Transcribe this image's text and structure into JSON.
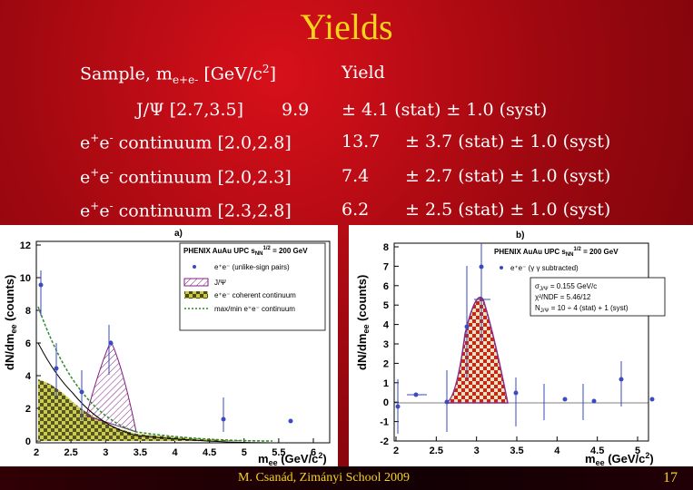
{
  "title": "Yields",
  "table": {
    "header_sample": "Sample, m",
    "header_sample_sub": "e+e-",
    "header_units": "[GeV/c",
    "header_units_sup": "2",
    "header_units_close": "]",
    "header_yield": "Yield",
    "rows": [
      {
        "label": "J/Ψ [2.7,3.5]",
        "value": "9.9",
        "uncert": "± 4.1 (stat) ± 1.0 (syst)"
      },
      {
        "pre": "e",
        "sup1": "+",
        "mid": "e",
        "sup2": "-",
        "label": " continuum [2.0,2.8]",
        "value": "13.7",
        "uncert": "± 3.7 (stat) ± 1.0 (syst)"
      },
      {
        "pre": "e",
        "sup1": "+",
        "mid": "e",
        "sup2": "-",
        "label": " continuum [2.0,2.3]",
        "value": "7.4",
        "uncert": "± 2.7 (stat) ± 1.0 (syst)"
      },
      {
        "pre": "e",
        "sup1": "+",
        "mid": "e",
        "sup2": "-",
        "label": " continuum [2.3,2.8]",
        "value": "6.2",
        "uncert": "± 2.5 (stat) ± 1.0 (syst)"
      }
    ]
  },
  "panel_a": {
    "tag": "a)",
    "ylabel": "dN/dm",
    "ylabel_sub": "ee",
    "ylabel_units": " (counts)",
    "xlabel": "m",
    "xlabel_sub": "ee",
    "xlabel_units": " (GeV/c",
    "xlabel_units_sup": "2",
    "xlabel_units_close": ")",
    "legend_title": "PHENIX AuAu UPC s",
    "legend_title_sub": "NN",
    "legend_title_sup": "1/2",
    "legend_title_end": " = 200 GeV",
    "legend": [
      "e⁺e⁻ (unlike-sign pairs)",
      "J/Ψ",
      "e⁺e⁻ coherent continuum",
      "max/min e⁺e⁻ continuum"
    ],
    "y_ticks": [
      "0",
      "2",
      "4",
      "6",
      "8",
      "10",
      "12"
    ],
    "x_ticks": [
      "2",
      "2.5",
      "3",
      "3.5",
      "4",
      "4.5",
      "5",
      "5.5",
      "6"
    ]
  },
  "panel_b": {
    "tag": "b)",
    "ylabel": "dN/dm",
    "ylabel_sub": "ee",
    "ylabel_units": " (counts)",
    "xlabel": "m",
    "xlabel_sub": "ee",
    "xlabel_units": " (GeV/c",
    "xlabel_units_sup": "2",
    "xlabel_units_close": ")",
    "legend_title": "PHENIX AuAu UPC s",
    "legend_title_sub": "NN",
    "legend_title_sup": "1/2",
    "legend_title_end": " = 200 GeV",
    "legend": [
      "e⁺e⁻ (γ γ subtracted)"
    ],
    "fit_lines": [
      "σ",
      "J/Ψ",
      " = 0.155 GeV/c",
      "χ²/NDF = 5.46/12",
      "N",
      " = 10 ÷ 4 (stat) + 1 (syst)"
    ],
    "y_ticks": [
      "-2",
      "-1",
      "0",
      "1",
      "2",
      "3",
      "4",
      "5",
      "6",
      "7",
      "8"
    ],
    "x_ticks": [
      "2",
      "2.5",
      "3",
      "3.5",
      "4",
      "4.5",
      "5"
    ]
  },
  "footer": "M. Csanád, Zimányi School 2009",
  "page_number": "17"
}
